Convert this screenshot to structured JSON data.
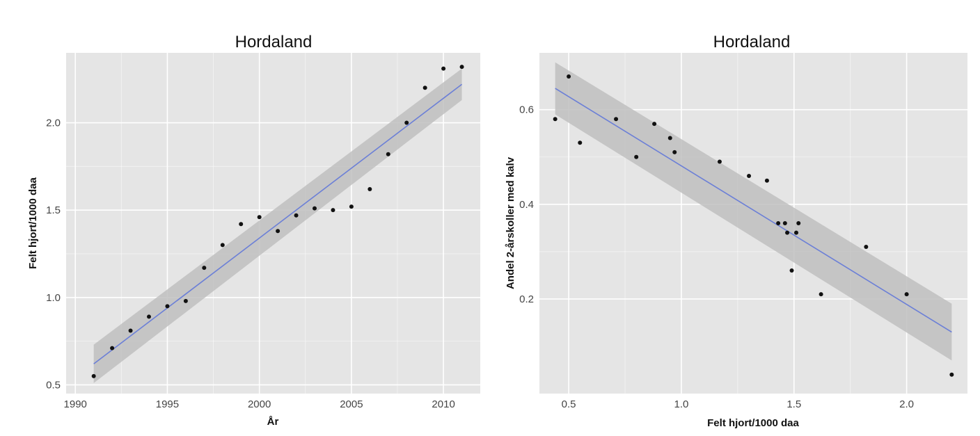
{
  "chart_data": [
    {
      "type": "scatter",
      "title": "Hordaland",
      "xlabel": "År",
      "ylabel": "Felt hjort/1000 daa",
      "xlim": [
        1989.5,
        2012
      ],
      "ylim": [
        0.45,
        2.4
      ],
      "xticks": [
        1990,
        1995,
        2000,
        2005,
        2010
      ],
      "yticks": [
        0.5,
        1.0,
        1.5,
        2.0
      ],
      "xtick_labels": [
        "1990",
        "1995",
        "2000",
        "2005",
        "2010"
      ],
      "ytick_labels": [
        "0.5",
        "1.0",
        "1.5",
        "2.0"
      ],
      "grid": true,
      "points": [
        [
          1991,
          0.55
        ],
        [
          1992,
          0.71
        ],
        [
          1993,
          0.81
        ],
        [
          1994,
          0.89
        ],
        [
          1995,
          0.95
        ],
        [
          1996,
          0.98
        ],
        [
          1997,
          1.17
        ],
        [
          1998,
          1.3
        ],
        [
          1999,
          1.42
        ],
        [
          2000,
          1.46
        ],
        [
          2001,
          1.38
        ],
        [
          2002,
          1.47
        ],
        [
          2003,
          1.51
        ],
        [
          2004,
          1.5
        ],
        [
          2005,
          1.52
        ],
        [
          2006,
          1.62
        ],
        [
          2007,
          1.82
        ],
        [
          2008,
          2.0
        ],
        [
          2009,
          2.2
        ],
        [
          2010,
          2.31
        ],
        [
          2011,
          2.32
        ]
      ],
      "fit": {
        "x": [
          1991,
          2011
        ],
        "y": [
          0.62,
          2.22
        ]
      },
      "band": {
        "x": [
          1991,
          2011
        ],
        "upper": [
          0.73,
          2.31
        ],
        "lower": [
          0.51,
          2.13
        ]
      },
      "colors": {
        "panel": "#e5e5e5",
        "grid": "#ffffff",
        "fit": "#6b7fd7",
        "band": "#c0c0c0",
        "point": "#111111"
      }
    },
    {
      "type": "scatter",
      "title": "Hordaland",
      "xlabel": "Felt hjort/1000 daa",
      "ylabel": "Andel 2-årskoller med kalv",
      "xlim": [
        0.37,
        2.27
      ],
      "ylim": [
        0.0,
        0.72
      ],
      "xticks": [
        0.5,
        1.0,
        1.5,
        2.0
      ],
      "yticks": [
        0.2,
        0.4,
        0.6
      ],
      "xtick_labels": [
        "0.5",
        "1.0",
        "1.5",
        "2.0"
      ],
      "ytick_labels": [
        "0.2",
        "0.4",
        "0.6"
      ],
      "grid": true,
      "points": [
        [
          0.44,
          0.58
        ],
        [
          0.5,
          0.67
        ],
        [
          0.55,
          0.53
        ],
        [
          0.71,
          0.58
        ],
        [
          0.8,
          0.5
        ],
        [
          0.88,
          0.57
        ],
        [
          0.95,
          0.54
        ],
        [
          0.97,
          0.51
        ],
        [
          1.17,
          0.49
        ],
        [
          1.3,
          0.46
        ],
        [
          1.38,
          0.45
        ],
        [
          1.43,
          0.36
        ],
        [
          1.46,
          0.36
        ],
        [
          1.47,
          0.34
        ],
        [
          1.49,
          0.26
        ],
        [
          1.51,
          0.34
        ],
        [
          1.52,
          0.36
        ],
        [
          1.62,
          0.21
        ],
        [
          1.82,
          0.31
        ],
        [
          2.0,
          0.21
        ],
        [
          2.2,
          0.04
        ]
      ],
      "fit": {
        "x": [
          0.44,
          2.2
        ],
        "y": [
          0.645,
          0.13
        ]
      },
      "band": {
        "x": [
          0.44,
          2.2
        ],
        "upper": [
          0.7,
          0.19
        ],
        "lower": [
          0.59,
          0.07
        ]
      },
      "colors": {
        "panel": "#e5e5e5",
        "grid": "#ffffff",
        "fit": "#6b7fd7",
        "band": "#c0c0c0",
        "point": "#111111"
      }
    }
  ]
}
